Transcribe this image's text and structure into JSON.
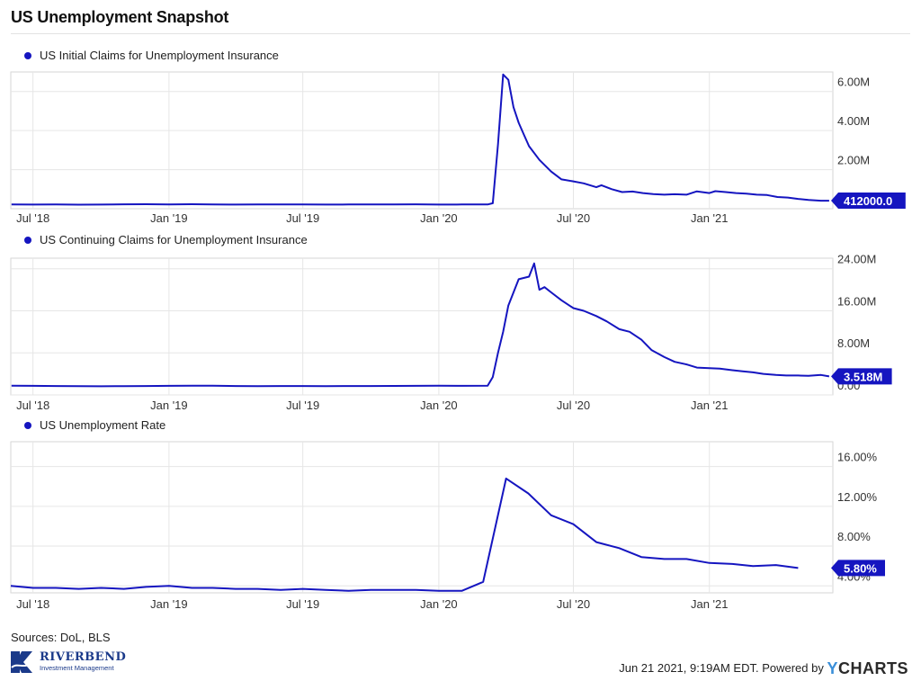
{
  "page": {
    "title": "US Unemployment Snapshot",
    "sources": "Sources: DoL, BLS",
    "footer": "Jun 21 2021, 9:19AM EDT.  Powered by",
    "brand_mark": "Y",
    "brand": "CHARTS",
    "logo_name": "RIVERBEND",
    "logo_sub": "Investment Management",
    "line_color": "#1515c0"
  },
  "chart_data": [
    {
      "type": "line",
      "legend": "US Initial Claims for Unemployment Insurance",
      "x_tick_labels": [
        "Jul '18",
        "Jan '19",
        "Jul '19",
        "Jan '20",
        "Jul '20",
        "Jan '21"
      ],
      "y_tick_labels": [
        "2.00M",
        "4.00M",
        "6.00M"
      ],
      "y_ticks": [
        2000000,
        4000000,
        6000000
      ],
      "ylim": [
        0,
        7000000
      ],
      "last_value_label": "412000.0",
      "grid": true,
      "series": [
        {
          "x": [
            "2018-06-02",
            "2018-07-01",
            "2018-08-01",
            "2018-09-01",
            "2018-10-01",
            "2018-11-01",
            "2018-12-01",
            "2019-01-01",
            "2019-02-01",
            "2019-03-01",
            "2019-04-01",
            "2019-05-01",
            "2019-06-01",
            "2019-07-01",
            "2019-08-01",
            "2019-09-01",
            "2019-10-01",
            "2019-11-01",
            "2019-12-01",
            "2020-01-01",
            "2020-02-01",
            "2020-03-07",
            "2020-03-14",
            "2020-03-21",
            "2020-03-28",
            "2020-04-04",
            "2020-04-11",
            "2020-04-18",
            "2020-04-25",
            "2020-05-02",
            "2020-05-16",
            "2020-06-01",
            "2020-06-15",
            "2020-07-01",
            "2020-07-15",
            "2020-08-01",
            "2020-08-08",
            "2020-08-22",
            "2020-09-05",
            "2020-09-19",
            "2020-10-03",
            "2020-10-17",
            "2020-11-01",
            "2020-11-15",
            "2020-12-01",
            "2020-12-15",
            "2021-01-01",
            "2021-01-09",
            "2021-01-23",
            "2021-02-06",
            "2021-02-20",
            "2021-03-06",
            "2021-03-20",
            "2021-04-03",
            "2021-04-17",
            "2021-05-01",
            "2021-05-15",
            "2021-06-01",
            "2021-06-12"
          ],
          "values": [
            220000,
            210000,
            215000,
            205000,
            210000,
            225000,
            230000,
            220000,
            230000,
            220000,
            210000,
            215000,
            220000,
            215000,
            210000,
            215000,
            220000,
            215000,
            225000,
            210000,
            215000,
            215000,
            280000,
            3300000,
            6870000,
            6600000,
            5200000,
            4400000,
            3800000,
            3200000,
            2500000,
            1900000,
            1500000,
            1400000,
            1300000,
            1100000,
            1200000,
            1000000,
            850000,
            880000,
            800000,
            750000,
            720000,
            740000,
            720000,
            890000,
            800000,
            900000,
            850000,
            800000,
            770000,
            720000,
            700000,
            600000,
            570000,
            500000,
            450000,
            410000,
            412000
          ]
        }
      ]
    },
    {
      "type": "line",
      "legend": "US Continuing Claims for Unemployment Insurance",
      "x_tick_labels": [
        "Jul '18",
        "Jan '19",
        "Jul '19",
        "Jan '20",
        "Jul '20",
        "Jan '21"
      ],
      "y_tick_labels": [
        "0.00",
        "8.00M",
        "16.00M",
        "24.00M"
      ],
      "y_ticks": [
        0,
        8000000,
        16000000,
        24000000
      ],
      "ylim": [
        0,
        26000000
      ],
      "last_value_label": "3.518M",
      "grid": true,
      "series": [
        {
          "x": [
            "2018-06-02",
            "2018-07-01",
            "2018-08-01",
            "2018-09-01",
            "2018-10-01",
            "2018-11-01",
            "2018-12-01",
            "2019-01-01",
            "2019-02-01",
            "2019-03-01",
            "2019-04-01",
            "2019-05-01",
            "2019-06-01",
            "2019-07-01",
            "2019-08-01",
            "2019-09-01",
            "2019-10-01",
            "2019-11-01",
            "2019-12-01",
            "2020-01-01",
            "2020-02-01",
            "2020-03-07",
            "2020-03-14",
            "2020-03-21",
            "2020-03-28",
            "2020-04-04",
            "2020-04-18",
            "2020-05-02",
            "2020-05-09",
            "2020-05-16",
            "2020-05-23",
            "2020-06-01",
            "2020-06-15",
            "2020-07-01",
            "2020-07-15",
            "2020-08-01",
            "2020-08-15",
            "2020-09-01",
            "2020-09-15",
            "2020-10-01",
            "2020-10-15",
            "2020-11-01",
            "2020-11-15",
            "2020-12-01",
            "2020-12-15",
            "2021-01-01",
            "2021-01-15",
            "2021-02-01",
            "2021-02-15",
            "2021-03-01",
            "2021-03-15",
            "2021-04-01",
            "2021-04-15",
            "2021-05-01",
            "2021-05-15",
            "2021-06-01",
            "2021-06-12"
          ],
          "values": [
            1750000,
            1720000,
            1700000,
            1680000,
            1650000,
            1680000,
            1700000,
            1720000,
            1740000,
            1750000,
            1700000,
            1680000,
            1690000,
            1700000,
            1680000,
            1690000,
            1700000,
            1710000,
            1720000,
            1740000,
            1730000,
            1750000,
            3400000,
            8000000,
            12000000,
            17000000,
            22000000,
            22500000,
            25000000,
            20000000,
            20500000,
            19500000,
            18000000,
            16500000,
            16000000,
            15000000,
            14000000,
            12500000,
            12000000,
            10500000,
            8500000,
            7200000,
            6300000,
            5800000,
            5200000,
            5100000,
            5000000,
            4700000,
            4500000,
            4300000,
            4000000,
            3800000,
            3700000,
            3700000,
            3650000,
            3800000,
            3518000
          ]
        }
      ]
    },
    {
      "type": "line",
      "legend": "US Unemployment Rate",
      "x_tick_labels": [
        "Jul '18",
        "Jan '19",
        "Jul '19",
        "Jan '20",
        "Jul '20",
        "Jan '21"
      ],
      "y_tick_labels": [
        "4.00%",
        "8.00%",
        "12.00%",
        "16.00%"
      ],
      "y_ticks": [
        4,
        8,
        12,
        16
      ],
      "ylim": [
        3.3,
        18.5
      ],
      "last_value_label": "5.80%",
      "grid": true,
      "series": [
        {
          "x": [
            "2018-06-01",
            "2018-07-01",
            "2018-08-01",
            "2018-09-01",
            "2018-10-01",
            "2018-11-01",
            "2018-12-01",
            "2019-01-01",
            "2019-02-01",
            "2019-03-01",
            "2019-04-01",
            "2019-05-01",
            "2019-06-01",
            "2019-07-01",
            "2019-08-01",
            "2019-09-01",
            "2019-10-01",
            "2019-11-01",
            "2019-12-01",
            "2020-01-01",
            "2020-02-01",
            "2020-03-01",
            "2020-04-01",
            "2020-05-01",
            "2020-06-01",
            "2020-07-01",
            "2020-08-01",
            "2020-09-01",
            "2020-10-01",
            "2020-11-01",
            "2020-12-01",
            "2021-01-01",
            "2021-02-01",
            "2021-03-01",
            "2021-04-01",
            "2021-05-01"
          ],
          "values": [
            4.0,
            3.8,
            3.8,
            3.7,
            3.8,
            3.7,
            3.9,
            4.0,
            3.8,
            3.8,
            3.7,
            3.7,
            3.6,
            3.7,
            3.6,
            3.5,
            3.6,
            3.6,
            3.6,
            3.5,
            3.5,
            4.4,
            14.8,
            13.3,
            11.1,
            10.2,
            8.4,
            7.8,
            6.9,
            6.7,
            6.7,
            6.3,
            6.2,
            6.0,
            6.1,
            5.8
          ]
        }
      ]
    }
  ]
}
